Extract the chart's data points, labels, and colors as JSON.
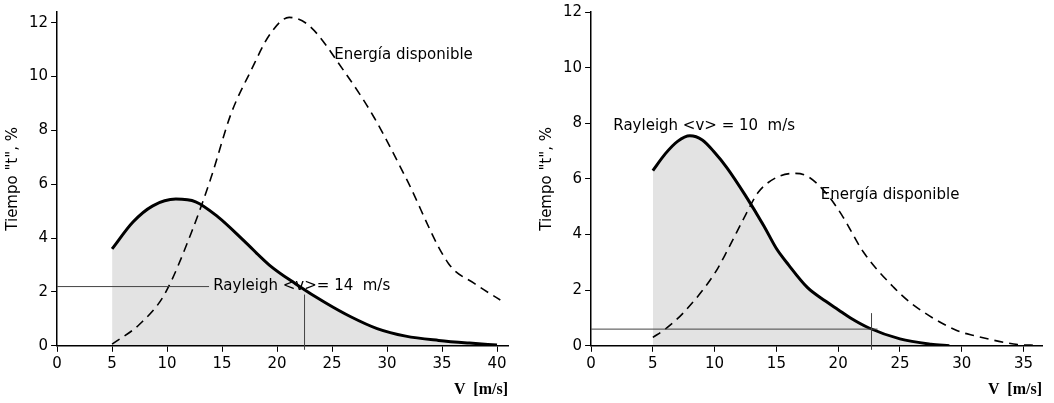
{
  "chart_data": [
    {
      "type": "line",
      "xlabel": "V  [m/s]",
      "ylabel": "Tiempo \"t\", %",
      "xlim": [
        0,
        41
      ],
      "xticks": [
        0,
        5,
        10,
        15,
        20,
        25,
        30,
        35,
        40
      ],
      "ylim": [
        0,
        12.4
      ],
      "yticks": [
        0,
        2,
        4,
        6,
        8,
        10,
        12
      ],
      "grid": false,
      "legend": false,
      "marker": "none",
      "series": [
        {
          "type": "area",
          "color": "#000000",
          "line_style": "solid",
          "x": [
            5,
            6.9,
            8.7,
            10.8,
            12.6,
            14.6,
            17,
            19.3,
            21.7,
            24.4,
            26.7,
            29.1,
            31.7,
            34.7,
            37.5,
            40
          ],
          "values": [
            3.6,
            4.6,
            5.2,
            5.45,
            5.35,
            4.8,
            3.9,
            3.0,
            2.3,
            1.6,
            1.08,
            0.64,
            0.36,
            0.2,
            0.1,
            0.03
          ]
        },
        {
          "type": "line",
          "color": "#000000",
          "line_style": "dashed",
          "x": [
            5,
            7.5,
            9.75,
            12.3,
            14,
            15.8,
            17.6,
            19.4,
            21.1,
            22.9,
            26.1,
            28.8,
            31.7,
            35.6,
            38,
            40.3
          ],
          "values": [
            0.06,
            0.8,
            1.9,
            4.3,
            6.25,
            8.6,
            10.2,
            11.6,
            12.2,
            11.9,
            10.2,
            8.5,
            6.25,
            3.05,
            2.3,
            1.7
          ]
        }
      ],
      "ref_lines": [
        {
          "axis": "y",
          "value": 2.2
        },
        {
          "axis": "x",
          "value": 22.5
        }
      ],
      "annotations": [
        "Energía disponible",
        "Rayleigh <v>= 14  m/s"
      ]
    },
    {
      "type": "line",
      "xlabel": "V  [m/s]",
      "ylabel": "Tiempo \"t\", %",
      "xlim": [
        0,
        36.5
      ],
      "xticks": [
        0,
        5,
        10,
        15,
        20,
        25,
        30,
        35
      ],
      "ylim": [
        0,
        12
      ],
      "yticks": [
        0,
        2,
        4,
        6,
        8,
        10,
        12
      ],
      "grid": false,
      "legend": false,
      "marker": "none",
      "series": [
        {
          "type": "area",
          "color": "#000000",
          "line_style": "solid",
          "x": [
            5,
            6,
            7,
            8,
            9,
            10,
            11,
            12.5,
            14,
            15,
            16,
            17.5,
            19,
            20,
            21,
            22.5,
            25,
            27.5,
            29
          ],
          "values": [
            6.3,
            6.9,
            7.35,
            7.55,
            7.4,
            6.95,
            6.4,
            5.4,
            4.3,
            3.5,
            2.9,
            2.1,
            1.6,
            1.3,
            1.0,
            0.64,
            0.25,
            0.06,
            0
          ]
        },
        {
          "type": "line",
          "color": "#000000",
          "line_style": "dashed",
          "x": [
            5,
            6,
            7.5,
            10,
            11,
            12.5,
            13.5,
            15,
            16.5,
            17.5,
            19,
            20.3,
            22,
            24.5,
            26,
            29.6,
            31,
            34.7,
            36
          ],
          "values": [
            0.3,
            0.6,
            1.2,
            2.6,
            3.4,
            4.7,
            5.5,
            6.05,
            6.2,
            6.1,
            5.5,
            4.7,
            3.4,
            2.1,
            1.5,
            0.55,
            0.37,
            0.04,
            0.02
          ]
        }
      ],
      "ref_lines": [
        {
          "axis": "y",
          "value": 0.6
        },
        {
          "axis": "x",
          "value": 22.7
        }
      ],
      "annotations": [
        "Energía disponible",
        "Rayleigh <v> = 10  m/s"
      ]
    }
  ]
}
